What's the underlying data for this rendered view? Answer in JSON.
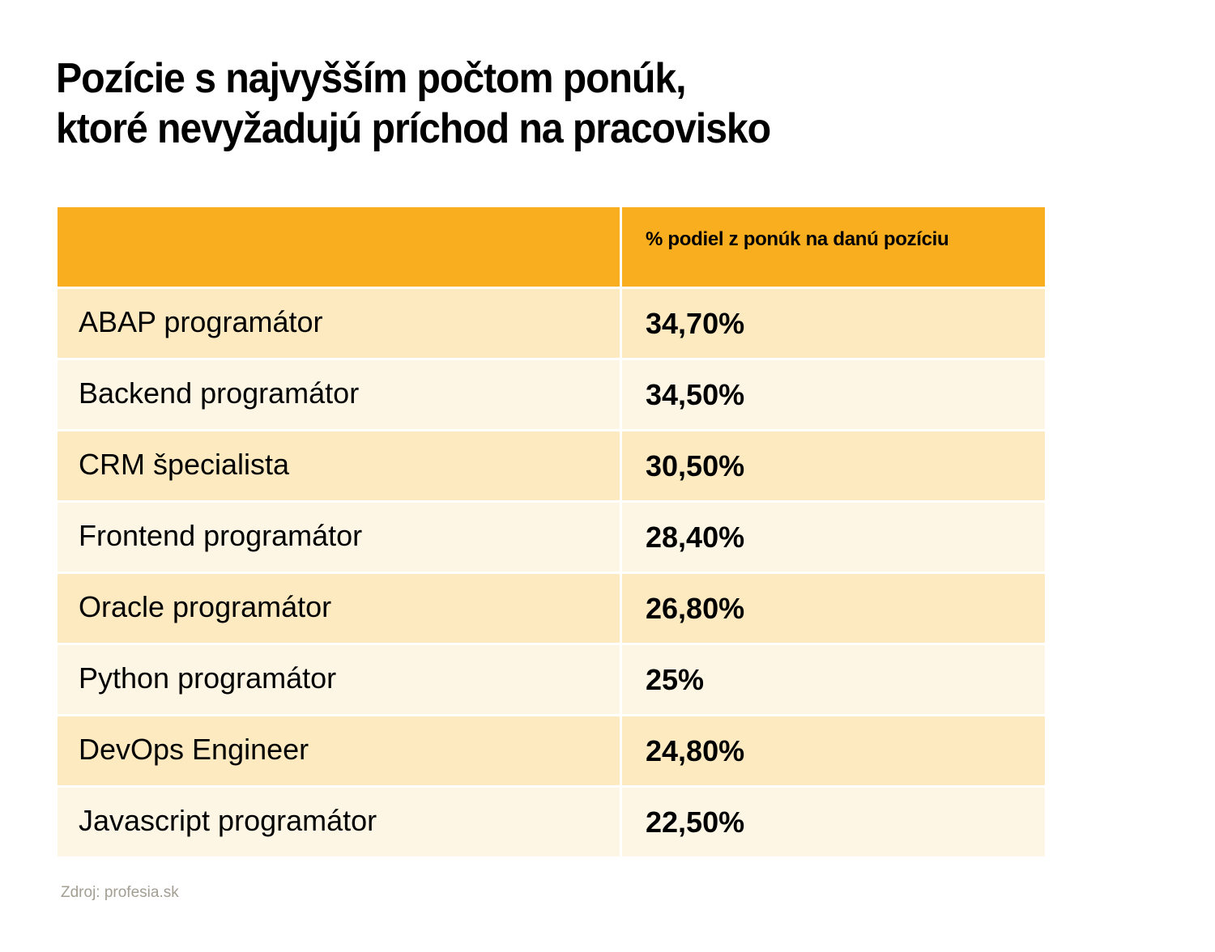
{
  "title": {
    "line1": "Pozície s najvyšším počtom ponúk,",
    "line2": "ktoré nevyžadujú príchod na pracovisko"
  },
  "table": {
    "header": {
      "col1": "",
      "col2": "% podiel z ponúk na danú pozíciu"
    },
    "rows": [
      {
        "position": "ABAP programátor",
        "share": "34,70%"
      },
      {
        "position": "Backend programátor",
        "share": "34,50%"
      },
      {
        "position": "CRM špecialista",
        "share": "30,50%"
      },
      {
        "position": "Frontend programátor",
        "share": "28,40%"
      },
      {
        "position": "Oracle programátor",
        "share": "26,80%"
      },
      {
        "position": "Python programátor",
        "share": "25%"
      },
      {
        "position": "DevOps Engineer",
        "share": "24,80%"
      },
      {
        "position": "Javascript programátor",
        "share": "22,50%"
      }
    ]
  },
  "source": "Zdroj: profesia.sk",
  "colors": {
    "header": "#f8ae1e",
    "row_odd": "#fdeac1",
    "row_even": "#fef6e4",
    "source_text": "#a39e92"
  }
}
